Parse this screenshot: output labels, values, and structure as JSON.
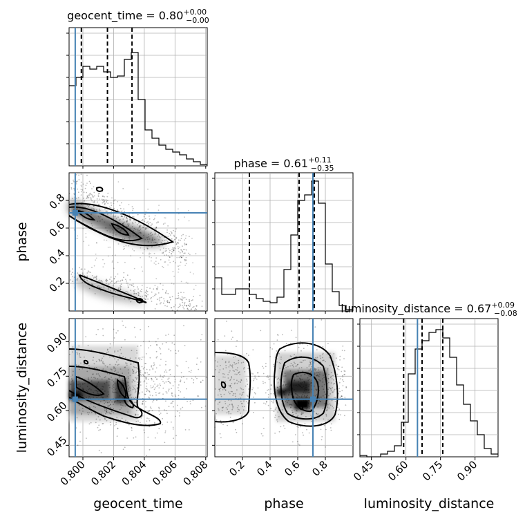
{
  "chart_data": {
    "type": "corner",
    "parameters": [
      {
        "name": "geocent_time",
        "label": "geocent_time",
        "median": "0.80",
        "plus": "+0.00",
        "minus": "−0.00",
        "range": [
          0.7991,
          0.8081
        ],
        "ticks": [
          "0.800",
          "0.802",
          "0.804",
          "0.806",
          "0.808"
        ],
        "tick_values": [
          0.8,
          0.802,
          0.804,
          0.806,
          0.808
        ],
        "truth": 0.7995
      },
      {
        "name": "phase",
        "label": "phase",
        "median": "0.61",
        "plus": "+0.11",
        "minus": "−0.35",
        "range": [
          0.0,
          1.0
        ],
        "ticks": [
          "0.2",
          "0.4",
          "0.6",
          "0.8"
        ],
        "tick_values": [
          0.2,
          0.4,
          0.6,
          0.8
        ],
        "truth": 0.71
      },
      {
        "name": "luminosity_distance",
        "label": "luminosity_distance",
        "median": "0.67",
        "plus": "+0.09",
        "minus": "−0.08",
        "range": [
          0.4,
          1.0
        ],
        "ticks": [
          "0.45",
          "0.60",
          "0.75",
          "0.90"
        ],
        "tick_values": [
          0.45,
          0.6,
          0.75,
          0.9
        ],
        "truth": 0.65
      }
    ],
    "histograms": [
      {
        "param": "geocent_time",
        "quantiles": [
          0.7999,
          0.8016,
          0.8032
        ],
        "heights": [
          0.58,
          0.64,
          0.72,
          0.7,
          0.72,
          0.68,
          0.64,
          0.65,
          0.77,
          0.82,
          0.48,
          0.26,
          0.2,
          0.15,
          0.12,
          0.1,
          0.08,
          0.05,
          0.03,
          0.01
        ]
      },
      {
        "param": "phase",
        "quantiles": [
          0.25,
          0.61,
          0.72
        ],
        "heights": [
          0.24,
          0.12,
          0.12,
          0.16,
          0.16,
          0.12,
          0.09,
          0.07,
          0.06,
          0.1,
          0.3,
          0.55,
          0.8,
          0.84,
          0.94,
          0.78,
          0.34,
          0.14,
          0.04,
          0.01
        ]
      },
      {
        "param": "luminosity_distance",
        "quantiles": [
          0.59,
          0.67,
          0.76
        ],
        "heights": [
          0.01,
          0.0,
          0.0,
          0.02,
          0.04,
          0.08,
          0.25,
          0.6,
          0.78,
          0.84,
          0.9,
          0.92,
          0.86,
          0.72,
          0.52,
          0.38,
          0.26,
          0.16,
          0.06,
          0.02
        ]
      }
    ],
    "grid": true,
    "truth_color": "#4682b4",
    "quantile_style": "dashed"
  }
}
